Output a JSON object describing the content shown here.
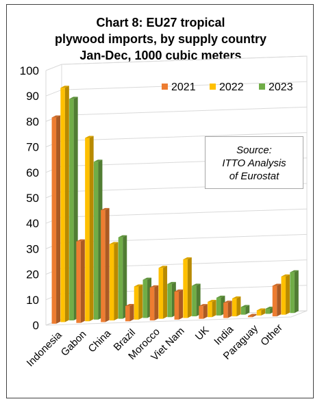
{
  "chart_data": {
    "type": "bar",
    "title": "Chart 8: EU27 tropical\nplywood imports, by supply country\nJan-Dec, 1000 cubic meters",
    "categories": [
      "Indonesia",
      "Gabon",
      "China",
      "Brazil",
      "Morocco",
      "Viet Nam",
      "UK",
      "India",
      "Paraguay",
      "Other"
    ],
    "series": [
      {
        "name": "2021",
        "color": "#ED7D31",
        "values": [
          81,
          32,
          44,
          6,
          13,
          11,
          5,
          6,
          0.5,
          12
        ]
      },
      {
        "name": "2022",
        "color": "#FFC000",
        "values": [
          92,
          72,
          30,
          13,
          20,
          23,
          6,
          7,
          2,
          15
        ]
      },
      {
        "name": "2023",
        "color": "#70AD47",
        "values": [
          87,
          62,
          32,
          15,
          13,
          12,
          7,
          3,
          2,
          16
        ]
      }
    ],
    "yticks": [
      0,
      10,
      20,
      30,
      40,
      50,
      60,
      70,
      80,
      90,
      100
    ],
    "ylim": [
      0,
      100
    ],
    "grid": true,
    "legend_position": "top-right",
    "annotation": "Source:\nITTO Analysis\nof Eurostat",
    "style": "3d-clustered-column"
  }
}
